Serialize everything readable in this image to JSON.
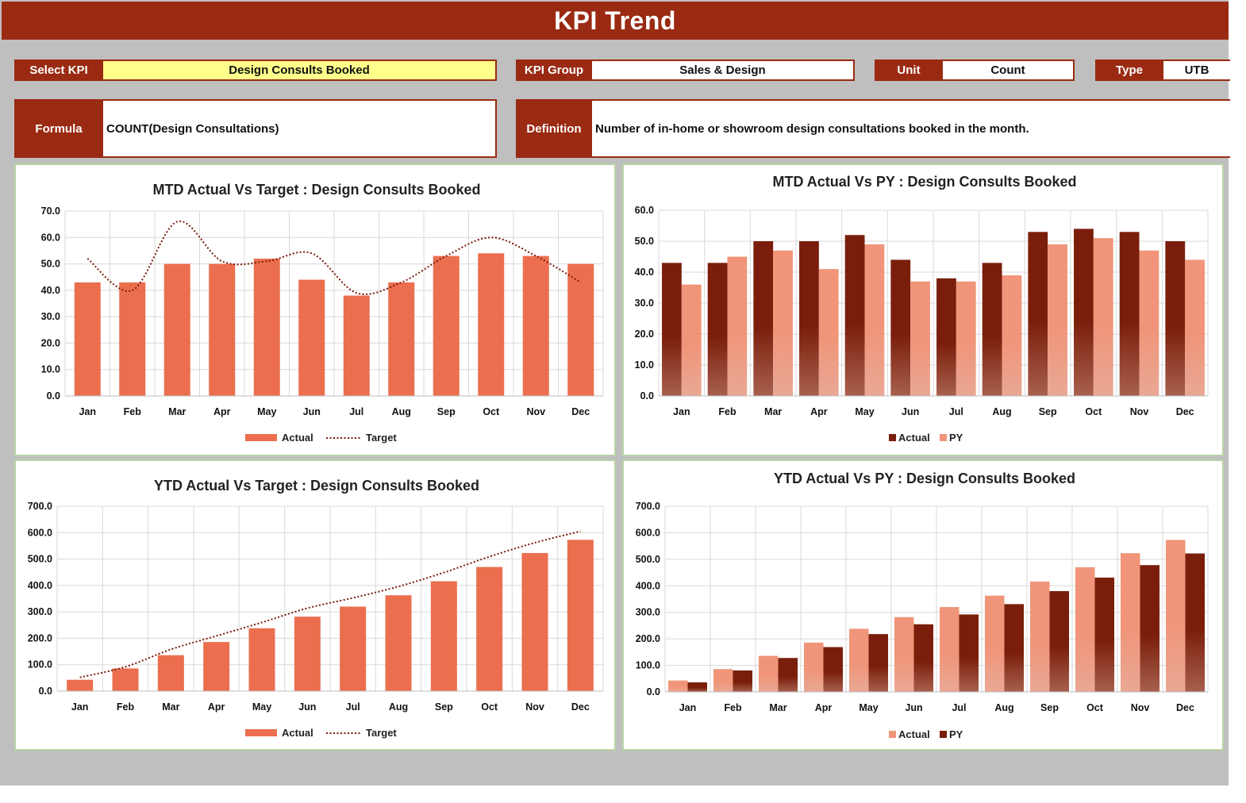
{
  "header": {
    "title": "KPI Trend"
  },
  "fields": {
    "select_kpi_label": "Select KPI",
    "select_kpi_value": "Design Consults Booked",
    "kpi_group_label": "KPI Group",
    "kpi_group_value": "Sales & Design",
    "unit_label": "Unit",
    "unit_value": "Count",
    "type_label": "Type",
    "type_value": "UTB",
    "formula_label": "Formula",
    "formula_value": "COUNT(Design Consultations)",
    "definition_label": "Definition",
    "definition_value": "Number of in-home or showroom design consultations booked in the month."
  },
  "colors": {
    "brand": "#9a2a12",
    "actual_orange": "#eb6f4f",
    "target_line": "#7a1a0a",
    "dark_bar": "#7a1e0b",
    "light_bar": "#f0957a",
    "panel_border": "#b9d3a6",
    "select_highlight": "#ffff8c"
  },
  "chart_data": [
    {
      "id": "mtd_target",
      "type": "bar",
      "title": "MTD Actual Vs Target : Design Consults Booked",
      "categories": [
        "Jan",
        "Feb",
        "Mar",
        "Apr",
        "May",
        "Jun",
        "Jul",
        "Aug",
        "Sep",
        "Oct",
        "Nov",
        "Dec"
      ],
      "series": [
        {
          "name": "Actual",
          "kind": "bar",
          "values": [
            43,
            43,
            50,
            50,
            52,
            44,
            38,
            43,
            53,
            54,
            53,
            50
          ]
        },
        {
          "name": "Target",
          "kind": "line",
          "values": [
            52,
            40,
            66,
            51,
            51,
            54,
            39,
            43,
            53,
            60,
            53,
            43
          ]
        }
      ],
      "ylim": [
        0,
        70
      ],
      "yticks": [
        "0.0",
        "10.0",
        "20.0",
        "30.0",
        "40.0",
        "50.0",
        "60.0",
        "70.0"
      ],
      "grid": true,
      "legend": "bottom"
    },
    {
      "id": "mtd_py",
      "type": "bar",
      "title": "MTD Actual Vs PY : Design Consults Booked",
      "categories": [
        "Jan",
        "Feb",
        "Mar",
        "Apr",
        "May",
        "Jun",
        "Jul",
        "Aug",
        "Sep",
        "Oct",
        "Nov",
        "Dec"
      ],
      "series": [
        {
          "name": "Actual",
          "kind": "bar",
          "values": [
            43,
            43,
            50,
            50,
            52,
            44,
            38,
            43,
            53,
            54,
            53,
            50
          ]
        },
        {
          "name": "PY",
          "kind": "bar",
          "values": [
            36,
            45,
            47,
            41,
            49,
            37,
            37,
            39,
            49,
            51,
            47,
            44
          ]
        }
      ],
      "ylim": [
        0,
        60
      ],
      "yticks": [
        "0.0",
        "10.0",
        "20.0",
        "30.0",
        "40.0",
        "50.0",
        "60.0"
      ],
      "grid": true,
      "legend": "bottom"
    },
    {
      "id": "ytd_target",
      "type": "bar",
      "title": "YTD Actual Vs Target : Design Consults Booked",
      "categories": [
        "Jan",
        "Feb",
        "Mar",
        "Apr",
        "May",
        "Jun",
        "Jul",
        "Aug",
        "Sep",
        "Oct",
        "Nov",
        "Dec"
      ],
      "series": [
        {
          "name": "Actual",
          "kind": "bar",
          "values": [
            43,
            86,
            136,
            186,
            238,
            282,
            320,
            363,
            416,
            470,
            523,
            573
          ]
        },
        {
          "name": "Target",
          "kind": "line",
          "values": [
            52,
            92,
            158,
            209,
            260,
            314,
            353,
            396,
            449,
            509,
            562,
            605
          ]
        }
      ],
      "ylim": [
        0,
        700
      ],
      "yticks": [
        "0.0",
        "100.0",
        "200.0",
        "300.0",
        "400.0",
        "500.0",
        "600.0",
        "700.0"
      ],
      "grid": true,
      "legend": "bottom"
    },
    {
      "id": "ytd_py",
      "type": "bar",
      "title": "YTD Actual Vs PY : Design Consults Booked",
      "categories": [
        "Jan",
        "Feb",
        "Mar",
        "Apr",
        "May",
        "Jun",
        "Jul",
        "Aug",
        "Sep",
        "Oct",
        "Nov",
        "Dec"
      ],
      "series": [
        {
          "name": "Actual",
          "kind": "bar",
          "values": [
            43,
            86,
            136,
            186,
            238,
            282,
            320,
            363,
            416,
            470,
            523,
            573
          ]
        },
        {
          "name": "PY",
          "kind": "bar",
          "values": [
            36,
            81,
            128,
            169,
            218,
            255,
            292,
            331,
            380,
            431,
            478,
            522
          ]
        }
      ],
      "ylim": [
        0,
        700
      ],
      "yticks": [
        "0.0",
        "100.0",
        "200.0",
        "300.0",
        "400.0",
        "500.0",
        "600.0",
        "700.0"
      ],
      "grid": true,
      "legend": "bottom"
    }
  ]
}
